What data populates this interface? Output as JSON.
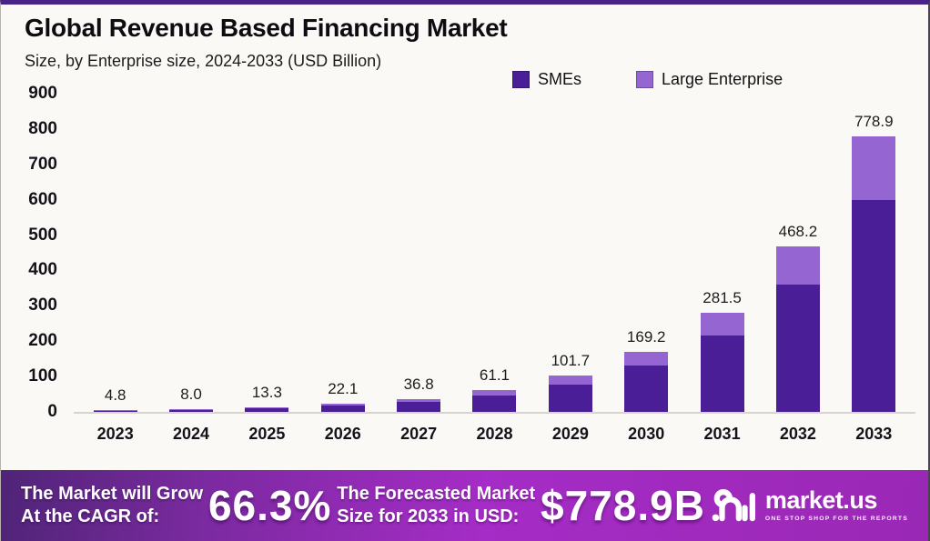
{
  "header": {
    "title": "Global Revenue Based Financing Market",
    "subtitle": "Size, by Enterprise size, 2024-2033 (USD Billion)"
  },
  "legend": {
    "items": [
      {
        "label": "SMEs",
        "color": "#4A1E96"
      },
      {
        "label": "Large Enterprise",
        "color": "#9565D2"
      }
    ]
  },
  "chart_data": {
    "type": "bar",
    "stacked": true,
    "title": "Global Revenue Based Financing Market",
    "subtitle": "Size, by Enterprise size, 2024-2033 (USD Billion)",
    "unit": "USD Billion",
    "categories": [
      "2023",
      "2024",
      "2025",
      "2026",
      "2027",
      "2028",
      "2029",
      "2030",
      "2031",
      "2032",
      "2033"
    ],
    "series": [
      {
        "name": "SMEs",
        "color": "#4A1E96",
        "values": [
          3.7,
          6.2,
          10.2,
          17.0,
          28.3,
          47.0,
          78.3,
          130.3,
          216.8,
          360.5,
          599.8
        ]
      },
      {
        "name": "Large Enterprise",
        "color": "#9565D2",
        "values": [
          1.1,
          1.8,
          3.1,
          5.1,
          8.5,
          14.1,
          23.4,
          38.9,
          64.7,
          107.7,
          179.1
        ]
      }
    ],
    "totals": [
      4.8,
      8.0,
      13.3,
      22.1,
      36.8,
      61.1,
      101.7,
      169.2,
      281.5,
      468.2,
      778.9
    ],
    "total_labels": [
      "4.8",
      "8.0",
      "13.3",
      "22.1",
      "36.8",
      "61.1",
      "101.7",
      "169.2",
      "281.5",
      "468.2",
      "778.9"
    ],
    "ylim": [
      0,
      900
    ],
    "yticks": [
      0,
      100,
      200,
      300,
      400,
      500,
      600,
      700,
      800,
      900
    ],
    "grid": false,
    "legend_position": "top-right"
  },
  "banner": {
    "cagr_label_line1": "The Market will Grow",
    "cagr_label_line2": "At the CAGR of:",
    "cagr_value": "66.3%",
    "forecast_label_line1": "The Forecasted Market",
    "forecast_label_line2": "Size for 2033 in USD:",
    "forecast_value": "$778.9B",
    "brand": {
      "name": "market.us",
      "tagline": "ONE STOP SHOP FOR THE REPORTS"
    }
  },
  "colors": {
    "smes_bar": "#4A1E96",
    "large_enterprise_bar": "#9565D2",
    "frame_top_border": "#4A2387",
    "background": "#FBF9F6",
    "banner_gradient_start": "#4F2477",
    "banner_gradient_mid": "#A52CC6",
    "banner_gradient_end": "#9A28B5"
  }
}
